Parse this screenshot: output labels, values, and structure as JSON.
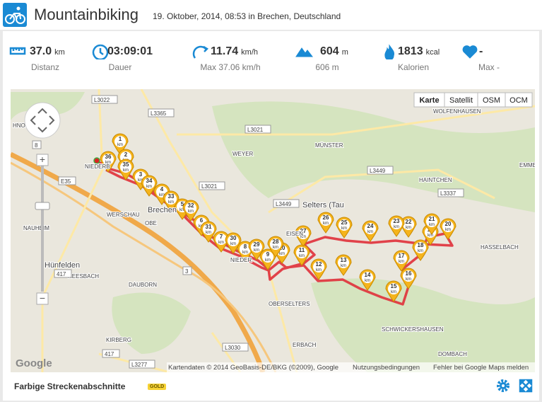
{
  "header": {
    "title": "Mountainbiking",
    "subtitle": "19. Oktober, 2014, 08:53 in Brechen, Deutschland"
  },
  "stats": [
    {
      "value": "37.0",
      "unit": "km",
      "label": "Distanz"
    },
    {
      "value": "03:09:01",
      "label": "Dauer"
    },
    {
      "value": "11.74",
      "unit": "km/h",
      "label": "Max 37.06 km/h"
    },
    {
      "value": "604",
      "unit": "m",
      "label": "606 m"
    },
    {
      "value": "1813",
      "unit": "kcal",
      "label": "Kalorien"
    },
    {
      "value": "-",
      "label": "Max -"
    }
  ],
  "map": {
    "types": [
      "Karte",
      "Satellit",
      "OSM",
      "OCM"
    ],
    "places": [
      "WOLFENHAUSEN",
      "MÜNSTER",
      "WEYER",
      "HAINTCHEN",
      "EMME",
      "Brechen",
      "WERSCHAU",
      "NAUHEIM",
      "Hünfelden",
      "NEESBACH",
      "DAUBORN",
      "Selters (Tau",
      "EISEN",
      "HASSELBACH",
      "NIEDER",
      "OBERSELTERS",
      "SCHWICKERSHAUSEN",
      "KIRBERG",
      "ERBACH",
      "DOMBACH",
      "NIEDERB",
      "HNOLD",
      "OBE"
    ],
    "roads": [
      "L3022",
      "L3365",
      "L3021",
      "L3021",
      "L3449",
      "L3337",
      "L3449",
      "L3030",
      "L3277",
      "E35",
      "8",
      "3",
      "417",
      "417"
    ],
    "markers": [
      1,
      2,
      3,
      4,
      5,
      6,
      7,
      8,
      9,
      10,
      11,
      12,
      13,
      14,
      15,
      16,
      17,
      18,
      19,
      20,
      21,
      22,
      23,
      24,
      25,
      26,
      27,
      28,
      29,
      30,
      31,
      32,
      33,
      34,
      35,
      36
    ],
    "marker_unit": "km",
    "logo": "Google",
    "attribution": "Kartendaten © 2014 GeoBasis-DE/BKG (©2009), Google",
    "terms": "Nutzungsbedingungen",
    "report": "Fehler bei Google Maps melden"
  },
  "footer": {
    "title": "Farbige Streckenabschnitte",
    "badge": "GOLD"
  }
}
